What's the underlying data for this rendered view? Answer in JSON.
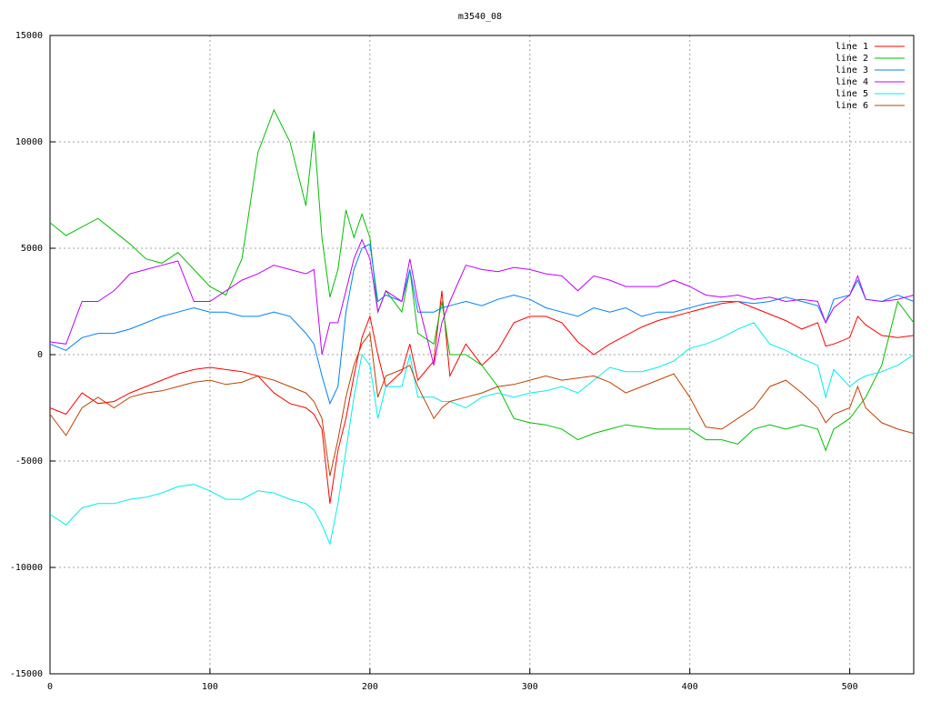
{
  "chart_data": {
    "type": "line",
    "title": "m3540_08",
    "x": [
      0,
      10,
      20,
      30,
      40,
      50,
      60,
      70,
      80,
      90,
      100,
      110,
      120,
      130,
      140,
      150,
      160,
      165,
      170,
      175,
      180,
      185,
      190,
      195,
      200,
      205,
      210,
      220,
      225,
      230,
      240,
      245,
      250,
      260,
      270,
      280,
      290,
      300,
      310,
      320,
      330,
      340,
      350,
      360,
      370,
      380,
      390,
      400,
      410,
      420,
      430,
      440,
      450,
      460,
      470,
      480,
      485,
      490,
      500,
      505,
      510,
      520,
      530,
      540
    ],
    "series": [
      {
        "name": "line 1",
        "color": "#ff0000",
        "values": [
          -2500,
          -2800,
          -1800,
          -2300,
          -2200,
          -1800,
          -1500,
          -1200,
          -900,
          -700,
          -600,
          -700,
          -800,
          -1000,
          -1800,
          -2300,
          -2500,
          -2800,
          -3500,
          -7000,
          -4500,
          -3000,
          -1000,
          800,
          1800,
          0,
          -1500,
          -800,
          500,
          -1200,
          -300,
          3000,
          -1000,
          500,
          -500,
          200,
          1500,
          1800,
          1800,
          1500,
          600,
          0,
          500,
          900,
          1300,
          1600,
          1800,
          2000,
          2200,
          2400,
          2500,
          2200,
          1900,
          1600,
          1200,
          1500,
          400,
          500,
          800,
          1800,
          1400,
          900,
          800,
          900
        ]
      },
      {
        "name": "line 2",
        "color": "#00c000",
        "values": [
          6200,
          5600,
          6000,
          6400,
          5800,
          5200,
          4500,
          4300,
          4800,
          4000,
          3200,
          2800,
          4500,
          9500,
          11500,
          10000,
          7000,
          10500,
          5500,
          2700,
          4000,
          6800,
          5500,
          6600,
          5500,
          2000,
          3000,
          2000,
          4000,
          1000,
          500,
          2500,
          0,
          0,
          -500,
          -1500,
          -3000,
          -3200,
          -3300,
          -3500,
          -4000,
          -3700,
          -3500,
          -3300,
          -3400,
          -3500,
          -3500,
          -3500,
          -4000,
          -4000,
          -4200,
          -3500,
          -3300,
          -3500,
          -3300,
          -3500,
          -4500,
          -3500,
          -3000,
          -2500,
          -2000,
          -500,
          2500,
          1500
        ]
      },
      {
        "name": "line 3",
        "color": "#0080ff",
        "values": [
          500,
          200,
          800,
          1000,
          1000,
          1200,
          1500,
          1800,
          2000,
          2200,
          2000,
          2000,
          1800,
          1800,
          2000,
          1800,
          1000,
          500,
          -1000,
          -2300,
          -1500,
          2000,
          4000,
          5000,
          5200,
          2500,
          2800,
          2500,
          4000,
          2000,
          2000,
          2200,
          2300,
          2500,
          2300,
          2600,
          2800,
          2600,
          2200,
          2000,
          1800,
          2200,
          2000,
          2200,
          1800,
          2000,
          2000,
          2200,
          2400,
          2500,
          2500,
          2400,
          2500,
          2700,
          2500,
          2300,
          1500,
          2600,
          2800,
          3500,
          2600,
          2500,
          2800,
          2500
        ]
      },
      {
        "name": "line 4",
        "color": "#c000ff",
        "values": [
          600,
          500,
          2500,
          2500,
          3000,
          3800,
          4000,
          4200,
          4400,
          2500,
          2500,
          3000,
          3500,
          3800,
          4200,
          4000,
          3800,
          4000,
          0,
          1500,
          1500,
          3000,
          4500,
          5400,
          4500,
          2000,
          3000,
          2500,
          4500,
          2500,
          -500,
          1500,
          2500,
          4200,
          4000,
          3900,
          4100,
          4000,
          3800,
          3700,
          3000,
          3700,
          3500,
          3200,
          3200,
          3200,
          3500,
          3200,
          2800,
          2700,
          2800,
          2600,
          2700,
          2500,
          2600,
          2500,
          1500,
          2200,
          2800,
          3700,
          2600,
          2500,
          2600,
          2800
        ]
      },
      {
        "name": "line 5",
        "color": "#00eeee",
        "values": [
          -7500,
          -8000,
          -7200,
          -7000,
          -7000,
          -6800,
          -6700,
          -6500,
          -6200,
          -6100,
          -6400,
          -6800,
          -6800,
          -6400,
          -6500,
          -6800,
          -7000,
          -7300,
          -8000,
          -8900,
          -7000,
          -4500,
          -2000,
          0,
          -500,
          -3000,
          -1500,
          -1500,
          0,
          -2000,
          -2000,
          -2200,
          -2200,
          -2500,
          -2000,
          -1800,
          -2000,
          -1800,
          -1700,
          -1500,
          -1800,
          -1200,
          -600,
          -800,
          -800,
          -600,
          -300,
          300,
          500,
          800,
          1200,
          1500,
          500,
          200,
          -200,
          -500,
          -2000,
          -700,
          -1500,
          -1200,
          -1000,
          -800,
          -500,
          0
        ]
      },
      {
        "name": "line 6",
        "color": "#c04000",
        "values": [
          -2800,
          -3800,
          -2500,
          -2000,
          -2500,
          -2000,
          -1800,
          -1700,
          -1500,
          -1300,
          -1200,
          -1400,
          -1300,
          -1000,
          -1200,
          -1500,
          -1800,
          -2200,
          -3000,
          -5700,
          -4000,
          -2000,
          -500,
          500,
          1000,
          -2000,
          -1000,
          -700,
          -500,
          -1500,
          -3000,
          -2500,
          -2200,
          -2000,
          -1800,
          -1500,
          -1400,
          -1200,
          -1000,
          -1200,
          -1100,
          -1000,
          -1300,
          -1800,
          -1500,
          -1200,
          -900,
          -2000,
          -3400,
          -3500,
          -3000,
          -2500,
          -1500,
          -1200,
          -1800,
          -2500,
          -3200,
          -2800,
          -2500,
          -1500,
          -2500,
          -3200,
          -3500,
          -3700
        ]
      }
    ],
    "xlim": [
      0,
      540
    ],
    "xticks": [
      0,
      100,
      200,
      300,
      400,
      500
    ],
    "ylim": [
      -15000,
      15000
    ],
    "yticks": [
      -15000,
      -10000,
      -5000,
      0,
      5000,
      10000,
      15000
    ],
    "grid": true,
    "legend": "top-right"
  }
}
